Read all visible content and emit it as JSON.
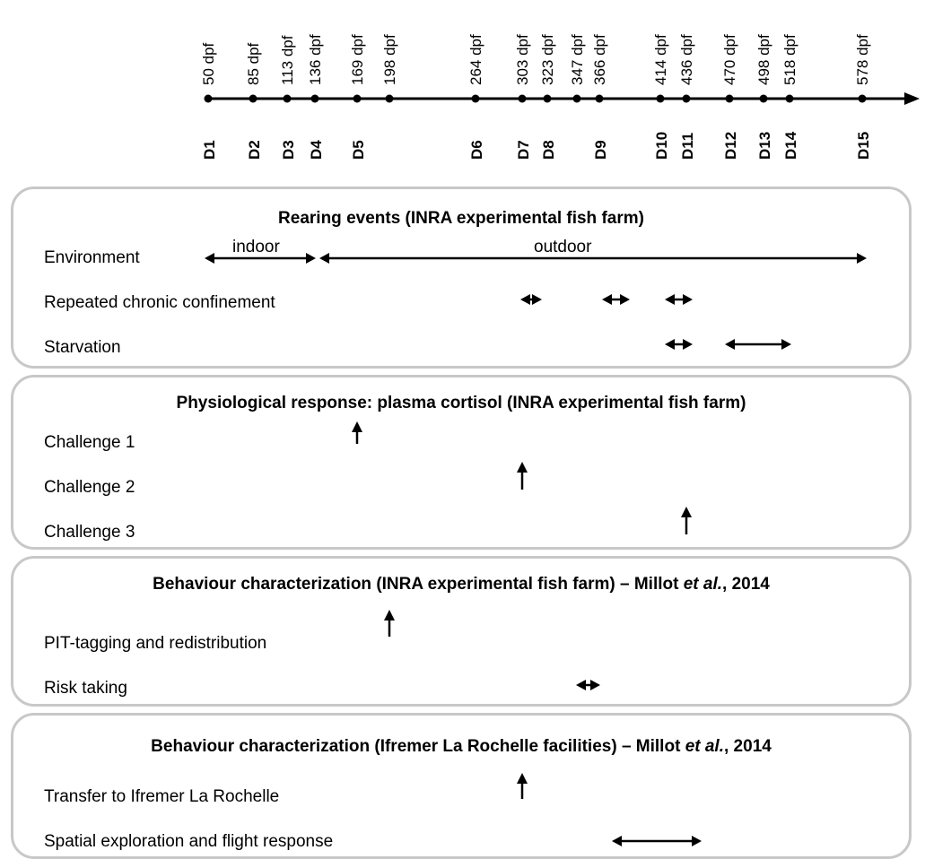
{
  "timeline": {
    "dpf_labels": [
      "50 dpf",
      "85 dpf",
      "113 dpf",
      "136 dpf",
      "169 dpf",
      "198 dpf",
      "264 dpf",
      "303 dpf",
      "323 dpf",
      "347 dpf",
      "366 dpf",
      "414 dpf",
      "436 dpf",
      "470 dpf",
      "498 dpf",
      "518 dpf",
      "578 dpf"
    ],
    "d_labels": [
      "D1",
      "D2",
      "D3",
      "D4",
      "D5",
      "D6",
      "D7",
      "D8",
      "D9",
      "D10",
      "D11",
      "D12",
      "D13",
      "D14",
      "D15"
    ]
  },
  "panels": {
    "rearing": {
      "title": "Rearing events (INRA experimental fish farm)",
      "rows": [
        "Environment",
        "Repeated chronic confinement",
        "Starvation"
      ],
      "indoor": "indoor",
      "outdoor": "outdoor"
    },
    "physio": {
      "title": "Physiological response: plasma cortisol (INRA experimental fish farm)",
      "rows": [
        "Challenge 1",
        "Challenge 2",
        "Challenge 3"
      ]
    },
    "behav1": {
      "title_main": "Behaviour characterization (INRA experimental fish farm) – Millot ",
      "title_italic": "et al.",
      "title_end": ", 2014",
      "rows": [
        "PIT-tagging and redistribution",
        "Risk taking"
      ]
    },
    "behav2": {
      "title_main": "Behaviour characterization (Ifremer La Rochelle facilities) – Millot ",
      "title_italic": "et al.",
      "title_end": ", 2014",
      "rows": [
        "Transfer to Ifremer La Rochelle",
        "Spatial exploration and flight response"
      ]
    }
  },
  "colors": {
    "border": "#c8c8c8",
    "ink": "#000000"
  }
}
